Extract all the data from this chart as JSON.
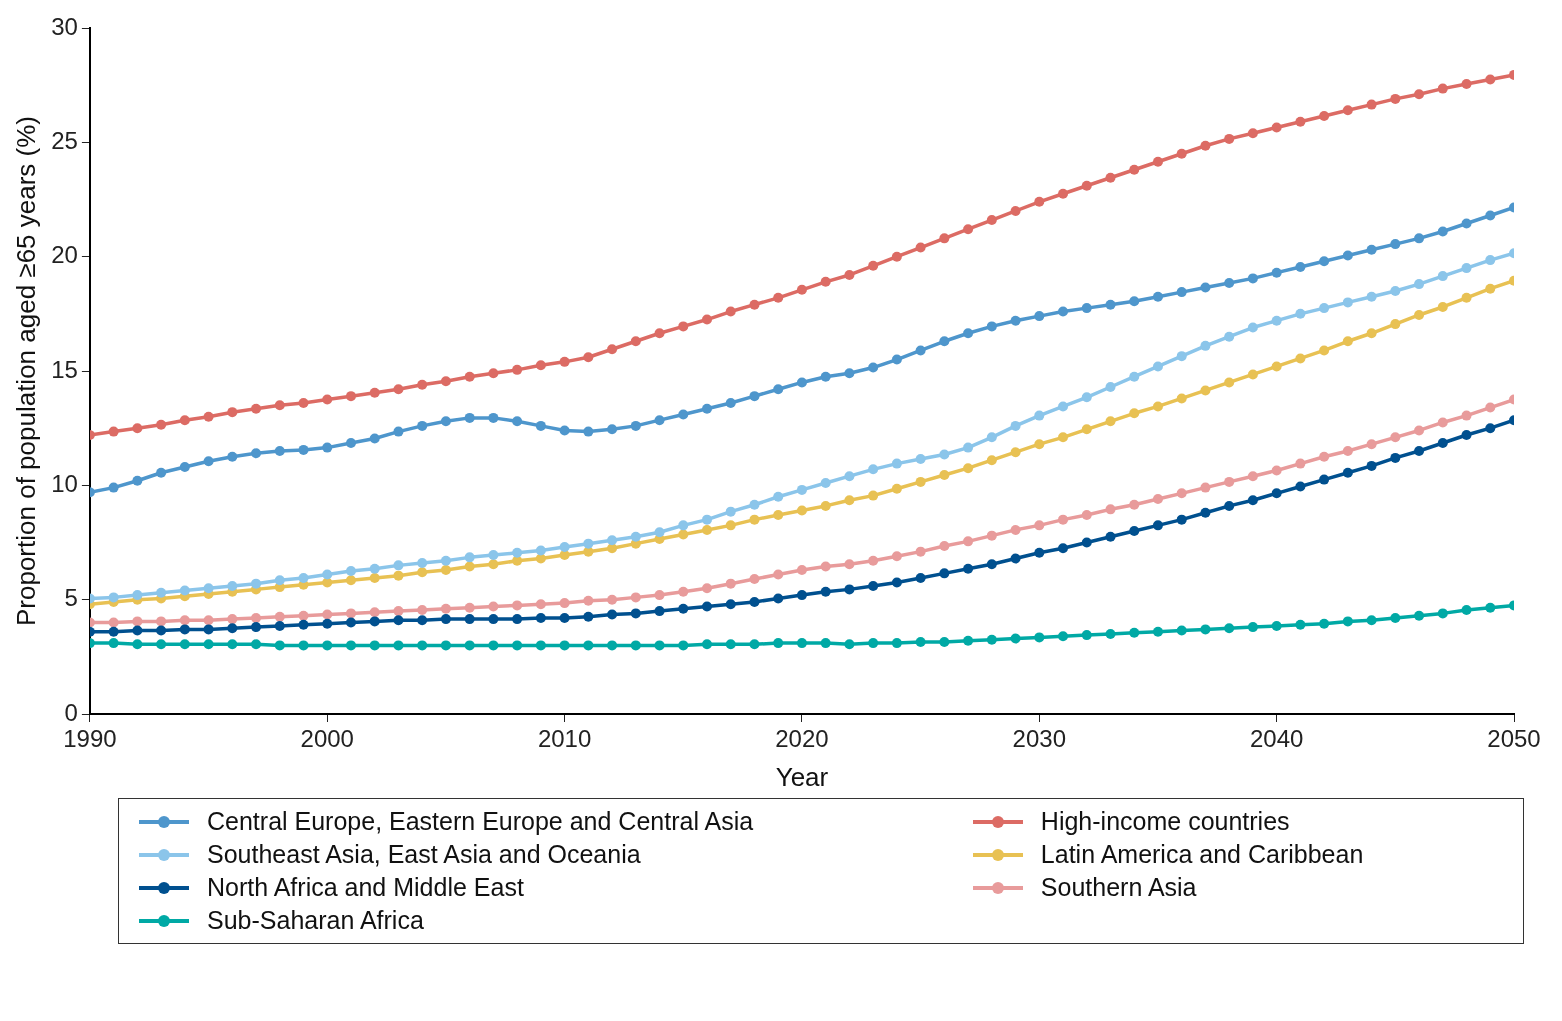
{
  "chart_data": {
    "type": "line",
    "xlabel": "Year",
    "ylabel": "Proportion of population aged ≥65 years (%)",
    "x": [
      1990,
      1991,
      1992,
      1993,
      1994,
      1995,
      1996,
      1997,
      1998,
      1999,
      2000,
      2001,
      2002,
      2003,
      2004,
      2005,
      2006,
      2007,
      2008,
      2009,
      2010,
      2011,
      2012,
      2013,
      2014,
      2015,
      2016,
      2017,
      2018,
      2019,
      2020,
      2021,
      2022,
      2023,
      2024,
      2025,
      2026,
      2027,
      2028,
      2029,
      2030,
      2031,
      2032,
      2033,
      2034,
      2035,
      2036,
      2037,
      2038,
      2039,
      2040,
      2041,
      2042,
      2043,
      2044,
      2045,
      2046,
      2047,
      2048,
      2049,
      2050
    ],
    "xlim": [
      1990,
      2050
    ],
    "xticks": [
      1990,
      2000,
      2010,
      2020,
      2030,
      2040,
      2050
    ],
    "ylim": [
      0,
      30
    ],
    "yticks": [
      0,
      5,
      10,
      15,
      20,
      25,
      30
    ],
    "grid": false,
    "legend": "bottom",
    "marker": "circle",
    "line_style": "solid",
    "series": [
      {
        "name": "Central Europe, Eastern Europe and Central Asia",
        "color": "#4e96cc",
        "values": [
          9.7,
          9.9,
          10.2,
          10.55,
          10.8,
          11.05,
          11.25,
          11.4,
          11.5,
          11.55,
          11.65,
          11.85,
          12.05,
          12.35,
          12.6,
          12.8,
          12.95,
          12.95,
          12.8,
          12.6,
          12.4,
          12.35,
          12.45,
          12.6,
          12.85,
          13.1,
          13.35,
          13.6,
          13.9,
          14.2,
          14.5,
          14.75,
          14.9,
          15.15,
          15.5,
          15.9,
          16.3,
          16.65,
          16.95,
          17.2,
          17.4,
          17.6,
          17.75,
          17.9,
          18.05,
          18.25,
          18.45,
          18.65,
          18.85,
          19.05,
          19.3,
          19.55,
          19.8,
          20.05,
          20.3,
          20.55,
          20.8,
          21.1,
          21.45,
          21.8,
          22.15
        ]
      },
      {
        "name": "High-income countries",
        "color": "#dc6b64",
        "values": [
          12.2,
          12.35,
          12.5,
          12.65,
          12.85,
          13.0,
          13.2,
          13.35,
          13.5,
          13.6,
          13.75,
          13.9,
          14.05,
          14.2,
          14.4,
          14.55,
          14.75,
          14.9,
          15.05,
          15.25,
          15.4,
          15.6,
          15.95,
          16.3,
          16.65,
          16.95,
          17.25,
          17.6,
          17.9,
          18.2,
          18.55,
          18.9,
          19.2,
          19.6,
          20.0,
          20.4,
          20.8,
          21.2,
          21.6,
          22.0,
          22.4,
          22.75,
          23.1,
          23.45,
          23.8,
          24.15,
          24.5,
          24.85,
          25.15,
          25.4,
          25.65,
          25.9,
          26.15,
          26.4,
          26.65,
          26.9,
          27.1,
          27.35,
          27.55,
          27.75,
          27.95
        ]
      },
      {
        "name": "Southeast Asia, East Asia and Oceania",
        "color": "#8bc5ea",
        "values": [
          5.05,
          5.1,
          5.2,
          5.3,
          5.4,
          5.5,
          5.6,
          5.7,
          5.85,
          5.95,
          6.1,
          6.25,
          6.35,
          6.5,
          6.6,
          6.7,
          6.85,
          6.95,
          7.05,
          7.15,
          7.3,
          7.45,
          7.6,
          7.75,
          7.95,
          8.25,
          8.5,
          8.85,
          9.15,
          9.5,
          9.8,
          10.1,
          10.4,
          10.7,
          10.95,
          11.15,
          11.35,
          11.65,
          12.1,
          12.6,
          13.05,
          13.45,
          13.85,
          14.3,
          14.75,
          15.2,
          15.65,
          16.1,
          16.5,
          16.9,
          17.2,
          17.5,
          17.75,
          18.0,
          18.25,
          18.5,
          18.8,
          19.15,
          19.5,
          19.85,
          20.15
        ]
      },
      {
        "name": "Latin America and Caribbean",
        "color": "#e8c153",
        "values": [
          4.8,
          4.9,
          5.0,
          5.05,
          5.15,
          5.25,
          5.35,
          5.45,
          5.55,
          5.65,
          5.75,
          5.85,
          5.95,
          6.05,
          6.2,
          6.3,
          6.45,
          6.55,
          6.7,
          6.8,
          6.95,
          7.1,
          7.25,
          7.45,
          7.65,
          7.85,
          8.05,
          8.25,
          8.5,
          8.7,
          8.9,
          9.1,
          9.35,
          9.55,
          9.85,
          10.15,
          10.45,
          10.75,
          11.1,
          11.45,
          11.8,
          12.1,
          12.45,
          12.8,
          13.15,
          13.45,
          13.8,
          14.15,
          14.5,
          14.85,
          15.2,
          15.55,
          15.9,
          16.3,
          16.65,
          17.05,
          17.45,
          17.8,
          18.2,
          18.6,
          18.95
        ]
      },
      {
        "name": "North Africa and Middle East",
        "color": "#00508f",
        "values": [
          3.6,
          3.6,
          3.65,
          3.65,
          3.7,
          3.7,
          3.75,
          3.8,
          3.85,
          3.9,
          3.95,
          4.0,
          4.05,
          4.1,
          4.1,
          4.15,
          4.15,
          4.15,
          4.15,
          4.2,
          4.2,
          4.25,
          4.35,
          4.4,
          4.5,
          4.6,
          4.7,
          4.8,
          4.9,
          5.05,
          5.2,
          5.35,
          5.45,
          5.6,
          5.75,
          5.95,
          6.15,
          6.35,
          6.55,
          6.8,
          7.05,
          7.25,
          7.5,
          7.75,
          8.0,
          8.25,
          8.5,
          8.8,
          9.1,
          9.35,
          9.65,
          9.95,
          10.25,
          10.55,
          10.85,
          11.2,
          11.5,
          11.85,
          12.2,
          12.5,
          12.85
        ]
      },
      {
        "name": "Southern Asia",
        "color": "#e89b9b",
        "values": [
          4.0,
          4.0,
          4.05,
          4.05,
          4.1,
          4.1,
          4.15,
          4.2,
          4.25,
          4.3,
          4.35,
          4.4,
          4.45,
          4.5,
          4.55,
          4.6,
          4.65,
          4.7,
          4.75,
          4.8,
          4.85,
          4.95,
          5.0,
          5.1,
          5.2,
          5.35,
          5.5,
          5.7,
          5.9,
          6.1,
          6.3,
          6.45,
          6.55,
          6.7,
          6.9,
          7.1,
          7.35,
          7.55,
          7.8,
          8.05,
          8.25,
          8.5,
          8.7,
          8.95,
          9.15,
          9.4,
          9.65,
          9.9,
          10.15,
          10.4,
          10.65,
          10.95,
          11.25,
          11.5,
          11.8,
          12.1,
          12.4,
          12.75,
          13.05,
          13.4,
          13.75
        ]
      },
      {
        "name": "Sub-Saharan Africa",
        "color": "#00a9a5",
        "values": [
          3.1,
          3.1,
          3.05,
          3.05,
          3.05,
          3.05,
          3.05,
          3.05,
          3.0,
          3.0,
          3.0,
          3.0,
          3.0,
          3.0,
          3.0,
          3.0,
          3.0,
          3.0,
          3.0,
          3.0,
          3.0,
          3.0,
          3.0,
          3.0,
          3.0,
          3.0,
          3.05,
          3.05,
          3.05,
          3.1,
          3.1,
          3.1,
          3.05,
          3.1,
          3.1,
          3.15,
          3.15,
          3.2,
          3.25,
          3.3,
          3.35,
          3.4,
          3.45,
          3.5,
          3.55,
          3.6,
          3.65,
          3.7,
          3.75,
          3.8,
          3.85,
          3.9,
          3.95,
          4.05,
          4.1,
          4.2,
          4.3,
          4.4,
          4.55,
          4.65,
          4.75
        ]
      }
    ]
  }
}
